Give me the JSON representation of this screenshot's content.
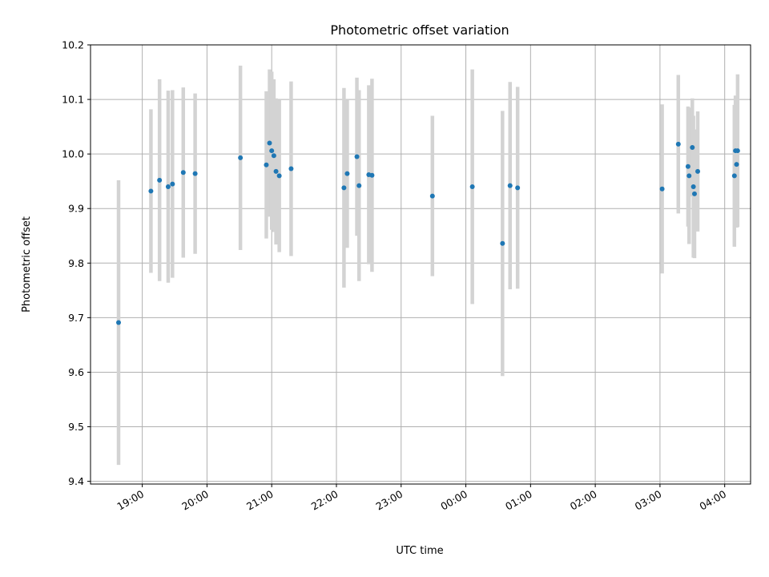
{
  "chart_data": {
    "type": "scatter",
    "title": "Photometric offset variation",
    "xlabel": "UTC time",
    "ylabel": "Photometric offset",
    "x_range": [
      "18:12",
      "04:24"
    ],
    "ylim": [
      9.395,
      10.2
    ],
    "y_ticks": [
      9.4,
      9.5,
      9.6,
      9.7,
      9.8,
      9.9,
      10.0,
      10.1,
      10.2
    ],
    "x_ticks": [
      "19:00",
      "20:00",
      "21:00",
      "22:00",
      "23:00",
      "00:00",
      "01:00",
      "02:00",
      "03:00",
      "04:00"
    ],
    "grid": true,
    "errorbar_color": "#d3d3d3",
    "marker_color": "#1f77b4",
    "points": [
      {
        "time": "18:38",
        "value": 9.691,
        "error": 0.261
      },
      {
        "time": "19:08",
        "value": 9.932,
        "error": 0.15
      },
      {
        "time": "19:16",
        "value": 9.952,
        "error": 0.185
      },
      {
        "time": "19:24",
        "value": 9.94,
        "error": 0.176
      },
      {
        "time": "19:28",
        "value": 9.945,
        "error": 0.172
      },
      {
        "time": "19:38",
        "value": 9.966,
        "error": 0.156
      },
      {
        "time": "19:49",
        "value": 9.964,
        "error": 0.147
      },
      {
        "time": "20:31",
        "value": 9.993,
        "error": 0.169
      },
      {
        "time": "20:55",
        "value": 9.98,
        "error": 0.135
      },
      {
        "time": "20:58",
        "value": 10.02,
        "error": 0.135
      },
      {
        "time": "21:00",
        "value": 10.006,
        "error": 0.145
      },
      {
        "time": "21:02",
        "value": 9.997,
        "error": 0.14
      },
      {
        "time": "21:04",
        "value": 9.968,
        "error": 0.134
      },
      {
        "time": "21:07",
        "value": 9.96,
        "error": 0.14
      },
      {
        "time": "21:18",
        "value": 9.973,
        "error": 0.16
      },
      {
        "time": "22:07",
        "value": 9.938,
        "error": 0.183
      },
      {
        "time": "22:10",
        "value": 9.964,
        "error": 0.136
      },
      {
        "time": "22:19",
        "value": 9.995,
        "error": 0.145
      },
      {
        "time": "22:21",
        "value": 9.942,
        "error": 0.175
      },
      {
        "time": "22:30",
        "value": 9.962,
        "error": 0.164
      },
      {
        "time": "22:33",
        "value": 9.961,
        "error": 0.177
      },
      {
        "time": "23:29",
        "value": 9.923,
        "error": 0.147
      },
      {
        "time": "00:06",
        "value": 9.94,
        "error": 0.215
      },
      {
        "time": "00:34",
        "value": 9.836,
        "error": 0.243
      },
      {
        "time": "00:41",
        "value": 9.942,
        "error": 0.19
      },
      {
        "time": "00:48",
        "value": 9.938,
        "error": 0.185
      },
      {
        "time": "03:02",
        "value": 9.936,
        "error": 0.155
      },
      {
        "time": "03:17",
        "value": 10.018,
        "error": 0.127
      },
      {
        "time": "03:26",
        "value": 9.977,
        "error": 0.11
      },
      {
        "time": "03:27",
        "value": 9.96,
        "error": 0.125
      },
      {
        "time": "03:30",
        "value": 10.012,
        "error": 0.09
      },
      {
        "time": "03:31",
        "value": 9.94,
        "error": 0.13
      },
      {
        "time": "03:32",
        "value": 9.927,
        "error": 0.118
      },
      {
        "time": "03:35",
        "value": 9.968,
        "error": 0.11
      },
      {
        "time": "04:09",
        "value": 9.96,
        "error": 0.13
      },
      {
        "time": "04:10",
        "value": 10.006,
        "error": 0.101
      },
      {
        "time": "04:11",
        "value": 9.981,
        "error": 0.116
      },
      {
        "time": "04:12",
        "value": 10.006,
        "error": 0.14
      }
    ]
  }
}
